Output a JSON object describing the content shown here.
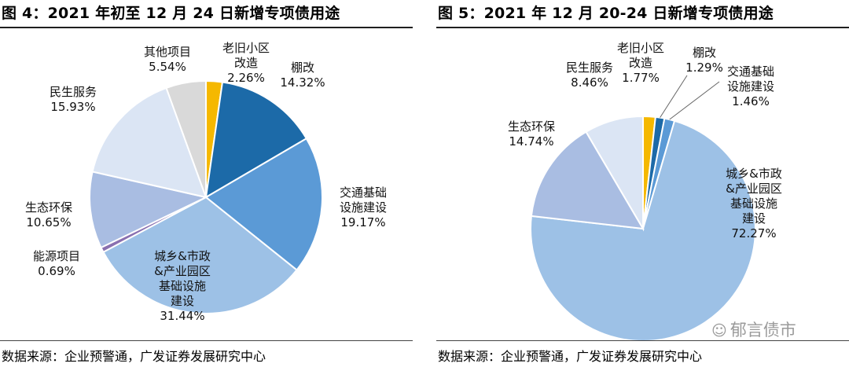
{
  "chart_data": [
    {
      "type": "pie",
      "title": "图 4：2021 年初至 12 月 24 日新增专项债用途",
      "source": "数据来源：企业预警通，广发证券发展研究中心",
      "slices": [
        {
          "label": "老旧小区改造",
          "label_lines": [
            "老旧小区",
            "改造"
          ],
          "value": 2.26,
          "display": "2.26%",
          "color": "#f5b800"
        },
        {
          "label": "棚改",
          "label_lines": [
            "棚改"
          ],
          "value": 14.32,
          "display": "14.32%",
          "color": "#1c6aa8"
        },
        {
          "label": "交通基础设施建设",
          "label_lines": [
            "交通基础",
            "设施建设"
          ],
          "value": 19.17,
          "display": "19.17%",
          "color": "#5b9ad6"
        },
        {
          "label": "城乡&市政&产业园区基础设施建设",
          "label_lines": [
            "城乡&市政",
            "&产业园区",
            "基础设施",
            "建设"
          ],
          "value": 31.44,
          "display": "31.44%",
          "color": "#9dc1e6"
        },
        {
          "label": "能源项目",
          "label_lines": [
            "能源项目"
          ],
          "value": 0.69,
          "display": "0.69%",
          "color": "#8a70b0"
        },
        {
          "label": "生态环保",
          "label_lines": [
            "生态环保"
          ],
          "value": 10.65,
          "display": "10.65%",
          "color": "#a9bde2"
        },
        {
          "label": "民生服务",
          "label_lines": [
            "民生服务"
          ],
          "value": 15.93,
          "display": "15.93%",
          "color": "#dbe5f4"
        },
        {
          "label": "其他项目",
          "label_lines": [
            "其他项目"
          ],
          "value": 5.54,
          "display": "5.54%",
          "color": "#d9d9d9"
        }
      ]
    },
    {
      "type": "pie",
      "title": "图 5：2021 年 12 月 20-24 日新增专项债用途",
      "source": "数据来源：企业预警通，广发证券发展研究中心",
      "slices": [
        {
          "label": "老旧小区改造",
          "label_lines": [
            "老旧小区",
            "改造"
          ],
          "value": 1.77,
          "display": "1.77%",
          "color": "#f5b800"
        },
        {
          "label": "棚改",
          "label_lines": [
            "棚改"
          ],
          "value": 1.29,
          "display": "1.29%",
          "color": "#1c6aa8"
        },
        {
          "label": "交通基础设施建设",
          "label_lines": [
            "交通基础",
            "设施建设"
          ],
          "value": 1.46,
          "display": "1.46%",
          "color": "#5b9ad6"
        },
        {
          "label": "城乡&市政&产业园区基础设施建设",
          "label_lines": [
            "城乡&市政",
            "&产业园区",
            "基础设施",
            "建设"
          ],
          "value": 72.27,
          "display": "72.27%",
          "color": "#9dc1e6"
        },
        {
          "label": "生态环保",
          "label_lines": [
            "生态环保"
          ],
          "value": 14.74,
          "display": "14.74%",
          "color": "#a9bde2"
        },
        {
          "label": "民生服务",
          "label_lines": [
            "民生服务"
          ],
          "value": 8.46,
          "display": "8.46%",
          "color": "#dbe5f4"
        }
      ]
    }
  ],
  "watermark": {
    "icon": "wechat-icon",
    "text": "郁言债市"
  }
}
